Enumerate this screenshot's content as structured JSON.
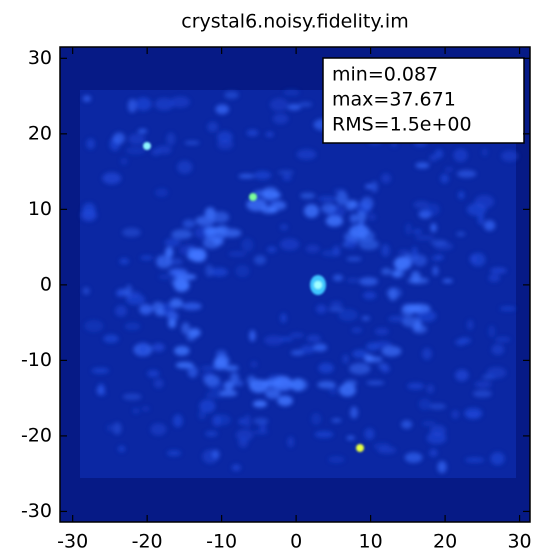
{
  "chart_data": {
    "type": "image",
    "title": "crystal6.noisy.fidelity.im",
    "annotations": [
      "min=0.087",
      "max=37.671",
      "RMS=1.5e+00"
    ],
    "xlim": [
      -31.7,
      31.4
    ],
    "ylim": [
      -31.4,
      31.5
    ],
    "xticks": [
      -30,
      -20,
      -10,
      0,
      10,
      20,
      30
    ],
    "yticks": [
      -30,
      -20,
      -10,
      0,
      10,
      20,
      30
    ]
  }
}
